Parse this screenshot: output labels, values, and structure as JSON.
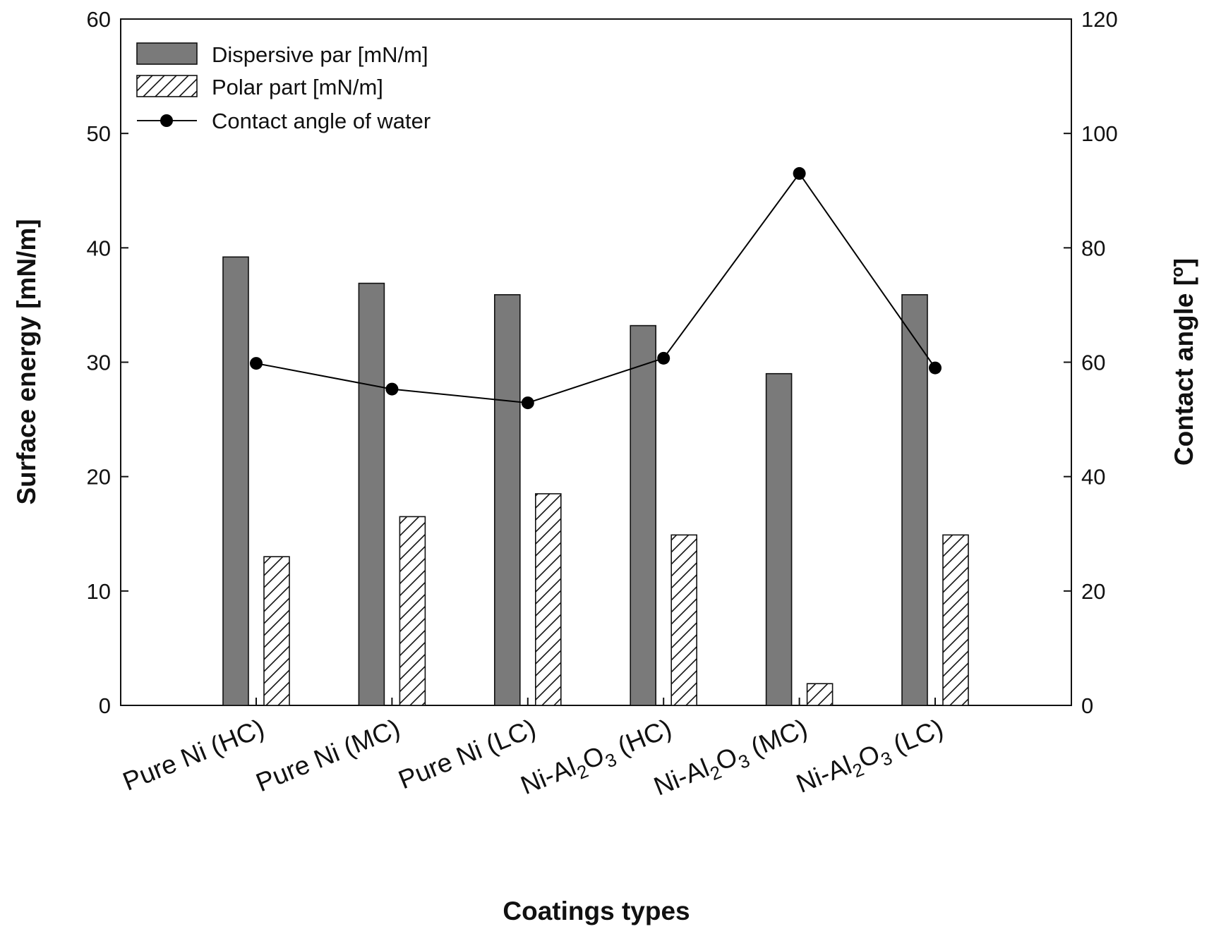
{
  "chart_data": {
    "type": "bar",
    "categories": [
      {
        "main": "Pure Ni (HC)"
      },
      {
        "main": "Pure Ni (MC)"
      },
      {
        "main": "Pure Ni (LC)"
      },
      {
        "main": "Ni-Al",
        "sub": "2",
        "mid": "O",
        "sub2": "3",
        "tail": " (HC)"
      },
      {
        "main": "Ni-Al",
        "sub": "2",
        "mid": "O",
        "sub2": "3",
        "tail": " (MC)"
      },
      {
        "main": "Ni-Al",
        "sub": "2",
        "mid": "O",
        "sub2": "3",
        "tail": " (LC)"
      }
    ],
    "series": [
      {
        "name": "Dispersive par [mN/m]",
        "axis": "left",
        "kind": "bar",
        "fill": "#7a7a7a",
        "values": [
          39.2,
          36.9,
          35.9,
          33.2,
          29.0,
          35.9
        ]
      },
      {
        "name": "Polar part [mN/m]",
        "axis": "left",
        "kind": "bar",
        "fill": "hatch",
        "values": [
          13.0,
          16.5,
          18.5,
          14.9,
          1.9,
          14.9
        ]
      },
      {
        "name": "Contact angle of water",
        "axis": "right",
        "kind": "line",
        "color": "#000000",
        "values": [
          59.8,
          55.3,
          52.9,
          60.7,
          93.0,
          59.0
        ]
      }
    ],
    "ylim": [
      0,
      60
    ],
    "y2lim": [
      0,
      120
    ],
    "yticks": [
      0,
      10,
      20,
      30,
      40,
      50,
      60
    ],
    "y2ticks": [
      0,
      20,
      40,
      60,
      80,
      100,
      120
    ],
    "xlabel": "Coatings types",
    "ylabel": "Surface energy [mN/m]",
    "y2label": "Contact angle [",
    "y2label_sup": "o",
    "y2label_end": "]",
    "legend_position": "top-left",
    "grid": false
  }
}
